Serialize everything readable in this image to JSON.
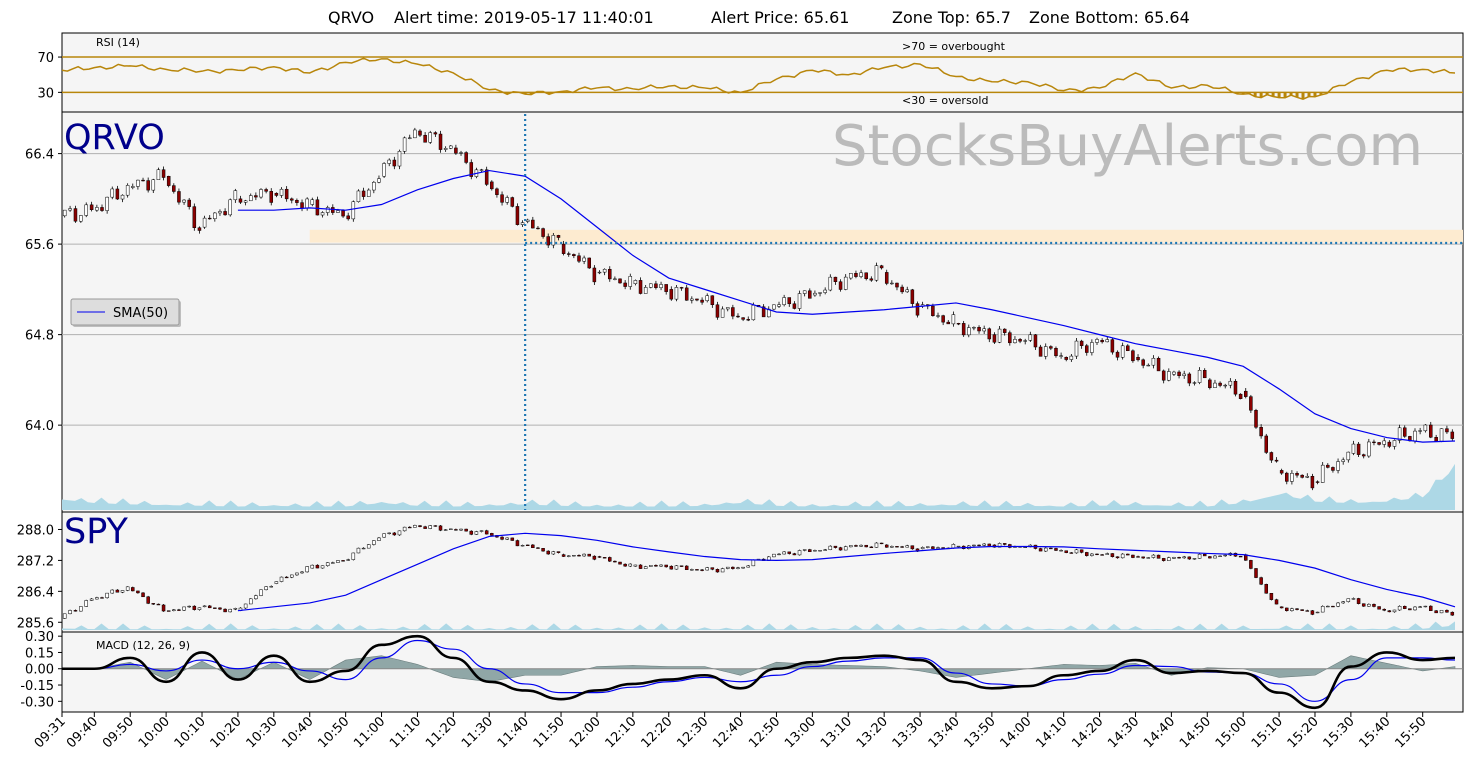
{
  "header": {
    "symbol": "QRVO",
    "alert_time_text": "Alert time: 2019-05-17 11:40:01",
    "alert_price_text": "Alert Price: 65.61",
    "zone_top_text": "Zone Top: 65.7",
    "zone_bottom_text": "Zone Bottom: 65.64"
  },
  "colors": {
    "panel_bg": "#f5f5f5",
    "rsi_line": "#b8860b",
    "sma_line": "#0000ee",
    "volume_fill": "#add8e6",
    "alert_line": "#1f77b4",
    "zone_fill": "#fdebd0",
    "macd_line": "#000000",
    "signal_line": "#0000ee",
    "hist_fill": "#7f9a9a",
    "symbol_label": "#00008b",
    "watermark": "#bbbbbb",
    "grid": "#b0b0b0"
  },
  "chart_data": [
    {
      "type": "line",
      "title": "RSI (14)",
      "yticks": [
        "70",
        "30"
      ],
      "ylim": [
        10,
        95
      ],
      "levels": [
        70,
        30
      ],
      "annotations": [
        ">70 = overbought",
        "<30 = oversold"
      ],
      "x_times": [
        "09:31",
        "09:40",
        "09:50",
        "10:00",
        "10:10",
        "10:20",
        "10:30",
        "10:40",
        "10:50",
        "11:00",
        "11:10",
        "11:20",
        "11:30",
        "11:40",
        "11:50",
        "12:00",
        "12:10",
        "12:20",
        "12:30",
        "12:40",
        "12:50",
        "13:00",
        "13:10",
        "13:20",
        "13:30",
        "13:40",
        "13:50",
        "14:00",
        "14:10",
        "14:20",
        "14:30",
        "14:40",
        "14:50",
        "15:00",
        "15:10",
        "15:20",
        "15:30",
        "15:40",
        "15:50",
        "15:59"
      ],
      "values": [
        55,
        58,
        60,
        56,
        54,
        55,
        59,
        52,
        64,
        68,
        62,
        52,
        33,
        28,
        31,
        35,
        34,
        37,
        35,
        30,
        45,
        55,
        50,
        58,
        62,
        48,
        42,
        42,
        32,
        35,
        52,
        35,
        38,
        28,
        24,
        25,
        42,
        55,
        56,
        52
      ]
    },
    {
      "type": "candlestick",
      "symbol_label": "QRVO",
      "watermark": "StocksBuyAlerts.com",
      "legend": [
        "SMA(50)"
      ],
      "grid": true,
      "yticks": [
        "66.4",
        "65.6",
        "64.8",
        "64.0"
      ],
      "ylim": [
        63.25,
        66.75
      ],
      "zone": {
        "top": 65.7,
        "bottom": 65.64
      },
      "alert_price": 65.61,
      "alert_time": "11:40",
      "x_times": [
        "09:31",
        "09:40",
        "09:50",
        "10:00",
        "10:10",
        "10:20",
        "10:30",
        "10:40",
        "10:50",
        "11:00",
        "11:10",
        "11:20",
        "11:30",
        "11:40",
        "11:50",
        "12:00",
        "12:10",
        "12:20",
        "12:30",
        "12:40",
        "12:50",
        "13:00",
        "13:10",
        "13:20",
        "13:30",
        "13:40",
        "13:50",
        "14:00",
        "14:10",
        "14:20",
        "14:30",
        "14:40",
        "14:50",
        "15:00",
        "15:10",
        "15:20",
        "15:30",
        "15:40",
        "15:50",
        "15:59"
      ],
      "close": [
        65.85,
        65.9,
        66.1,
        66.2,
        65.75,
        66.0,
        66.05,
        65.95,
        65.85,
        66.2,
        66.6,
        66.45,
        66.15,
        65.8,
        65.6,
        65.35,
        65.25,
        65.2,
        65.1,
        64.95,
        65.05,
        65.15,
        65.3,
        65.35,
        65.05,
        64.9,
        64.8,
        64.75,
        64.6,
        64.75,
        64.6,
        64.45,
        64.4,
        64.3,
        63.6,
        63.5,
        63.75,
        63.85,
        63.95,
        63.9
      ],
      "sma": [
        null,
        null,
        null,
        null,
        null,
        65.9,
        65.9,
        65.92,
        65.9,
        65.95,
        66.08,
        66.18,
        66.25,
        66.2,
        66.0,
        65.75,
        65.5,
        65.3,
        65.2,
        65.1,
        65.0,
        64.98,
        65.0,
        65.02,
        65.05,
        65.08,
        65.02,
        64.95,
        64.88,
        64.8,
        64.72,
        64.66,
        64.6,
        64.52,
        64.32,
        64.1,
        63.97,
        63.89,
        63.85,
        63.86
      ],
      "volume": [
        0.15,
        0.1,
        0.08,
        0.07,
        0.06,
        0.05,
        0.06,
        0.05,
        0.05,
        0.1,
        0.06,
        0.05,
        0.06,
        0.08,
        0.06,
        0.05,
        0.05,
        0.05,
        0.06,
        0.1,
        0.06,
        0.05,
        0.06,
        0.05,
        0.06,
        0.07,
        0.05,
        0.06,
        0.05,
        0.06,
        0.07,
        0.06,
        0.05,
        0.1,
        0.22,
        0.12,
        0.1,
        0.12,
        0.18,
        0.6
      ]
    },
    {
      "type": "candlestick",
      "symbol_label": "SPY",
      "yticks": [
        "288.0",
        "287.2",
        "286.4",
        "285.6"
      ],
      "ylim": [
        285.4,
        288.4
      ],
      "x_times": [
        "09:31",
        "09:40",
        "09:50",
        "10:00",
        "10:10",
        "10:20",
        "10:30",
        "10:40",
        "10:50",
        "11:00",
        "11:10",
        "11:20",
        "11:30",
        "11:40",
        "11:50",
        "12:00",
        "12:10",
        "12:20",
        "12:30",
        "12:40",
        "12:50",
        "13:00",
        "13:10",
        "13:20",
        "13:30",
        "13:40",
        "13:50",
        "14:00",
        "14:10",
        "14:20",
        "14:30",
        "14:40",
        "14:50",
        "15:00",
        "15:10",
        "15:20",
        "15:30",
        "15:40",
        "15:50",
        "15:59"
      ],
      "close": [
        285.7,
        286.2,
        286.5,
        285.9,
        286.0,
        285.9,
        286.6,
        287.0,
        287.2,
        287.8,
        288.1,
        288.0,
        287.9,
        287.6,
        287.35,
        287.3,
        287.05,
        287.05,
        286.95,
        287.0,
        287.35,
        287.45,
        287.55,
        287.6,
        287.5,
        287.55,
        287.6,
        287.55,
        287.45,
        287.35,
        287.3,
        287.25,
        287.3,
        287.35,
        286.0,
        285.85,
        286.2,
        285.9,
        286.0,
        285.8
      ],
      "sma": [
        null,
        null,
        null,
        null,
        null,
        285.9,
        286.0,
        286.1,
        286.3,
        286.7,
        287.1,
        287.5,
        287.82,
        287.9,
        287.84,
        287.72,
        287.55,
        287.42,
        287.3,
        287.22,
        287.2,
        287.22,
        287.3,
        287.38,
        287.45,
        287.52,
        287.56,
        287.56,
        287.55,
        287.5,
        287.46,
        287.42,
        287.38,
        287.35,
        287.2,
        287.0,
        286.7,
        286.45,
        286.25,
        286.0
      ],
      "volume": [
        0.1,
        0.06,
        0.05,
        0.05,
        0.05,
        0.05,
        0.05,
        0.04,
        0.04,
        0.05,
        0.05,
        0.04,
        0.04,
        0.05,
        0.04,
        0.04,
        0.04,
        0.04,
        0.04,
        0.05,
        0.04,
        0.04,
        0.04,
        0.04,
        0.04,
        0.04,
        0.04,
        0.04,
        0.04,
        0.04,
        0.04,
        0.04,
        0.04,
        0.06,
        0.08,
        0.06,
        0.05,
        0.06,
        0.08,
        0.3
      ]
    },
    {
      "type": "line",
      "title": "MACD (12, 26, 9)",
      "yticks": [
        "0.30",
        "0.15",
        "0.00",
        "-0.15",
        "-0.30"
      ],
      "ylim": [
        -0.38,
        0.32
      ],
      "x_times": [
        "09:31",
        "09:40",
        "09:50",
        "10:00",
        "10:10",
        "10:20",
        "10:30",
        "10:40",
        "10:50",
        "11:00",
        "11:10",
        "11:20",
        "11:30",
        "11:40",
        "11:50",
        "12:00",
        "12:10",
        "12:20",
        "12:30",
        "12:40",
        "12:50",
        "13:00",
        "13:10",
        "13:20",
        "13:30",
        "13:40",
        "13:50",
        "14:00",
        "14:10",
        "14:20",
        "14:30",
        "14:40",
        "14:50",
        "15:00",
        "15:10",
        "15:20",
        "15:30",
        "15:40",
        "15:50",
        "15:59"
      ],
      "macd": [
        0.0,
        0.0,
        0.1,
        -0.12,
        0.15,
        -0.1,
        0.12,
        -0.12,
        -0.02,
        0.22,
        0.3,
        0.1,
        -0.12,
        -0.2,
        -0.28,
        -0.2,
        -0.14,
        -0.1,
        -0.06,
        -0.18,
        0.0,
        0.06,
        0.1,
        0.12,
        0.08,
        -0.12,
        -0.18,
        -0.16,
        -0.06,
        -0.02,
        0.08,
        -0.04,
        -0.02,
        -0.04,
        -0.22,
        -0.36,
        0.02,
        0.15,
        0.08,
        0.1
      ],
      "signal": [
        0.0,
        0.0,
        0.04,
        -0.02,
        0.08,
        0.0,
        0.06,
        -0.02,
        -0.1,
        0.1,
        0.26,
        0.18,
        0.0,
        -0.14,
        -0.22,
        -0.22,
        -0.17,
        -0.12,
        -0.08,
        -0.12,
        -0.06,
        0.02,
        0.07,
        0.1,
        0.1,
        -0.04,
        -0.14,
        -0.16,
        -0.1,
        -0.05,
        0.03,
        0.02,
        -0.03,
        -0.04,
        -0.14,
        -0.3,
        -0.1,
        0.1,
        0.1,
        0.08
      ],
      "histogram": [
        0.0,
        0.0,
        0.06,
        -0.1,
        0.07,
        -0.1,
        0.06,
        -0.1,
        0.08,
        0.12,
        0.04,
        -0.08,
        -0.12,
        -0.06,
        -0.06,
        0.02,
        0.03,
        0.02,
        0.02,
        -0.06,
        0.06,
        0.04,
        0.03,
        0.02,
        -0.02,
        -0.08,
        -0.04,
        0.0,
        0.04,
        0.03,
        0.05,
        -0.06,
        0.01,
        0.0,
        -0.08,
        -0.06,
        0.12,
        0.05,
        -0.02,
        0.02
      ]
    }
  ],
  "x_axis_labels": [
    "09:31",
    "09:40",
    "09:50",
    "10:00",
    "10:10",
    "10:20",
    "10:30",
    "10:40",
    "10:50",
    "11:00",
    "11:10",
    "11:20",
    "11:30",
    "11:40",
    "11:50",
    "12:00",
    "12:10",
    "12:20",
    "12:30",
    "12:40",
    "12:50",
    "13:00",
    "13:10",
    "13:20",
    "13:30",
    "13:40",
    "13:50",
    "14:00",
    "14:10",
    "14:20",
    "14:30",
    "14:40",
    "14:50",
    "15:00",
    "15:10",
    "15:20",
    "15:30",
    "15:40",
    "15:50"
  ]
}
